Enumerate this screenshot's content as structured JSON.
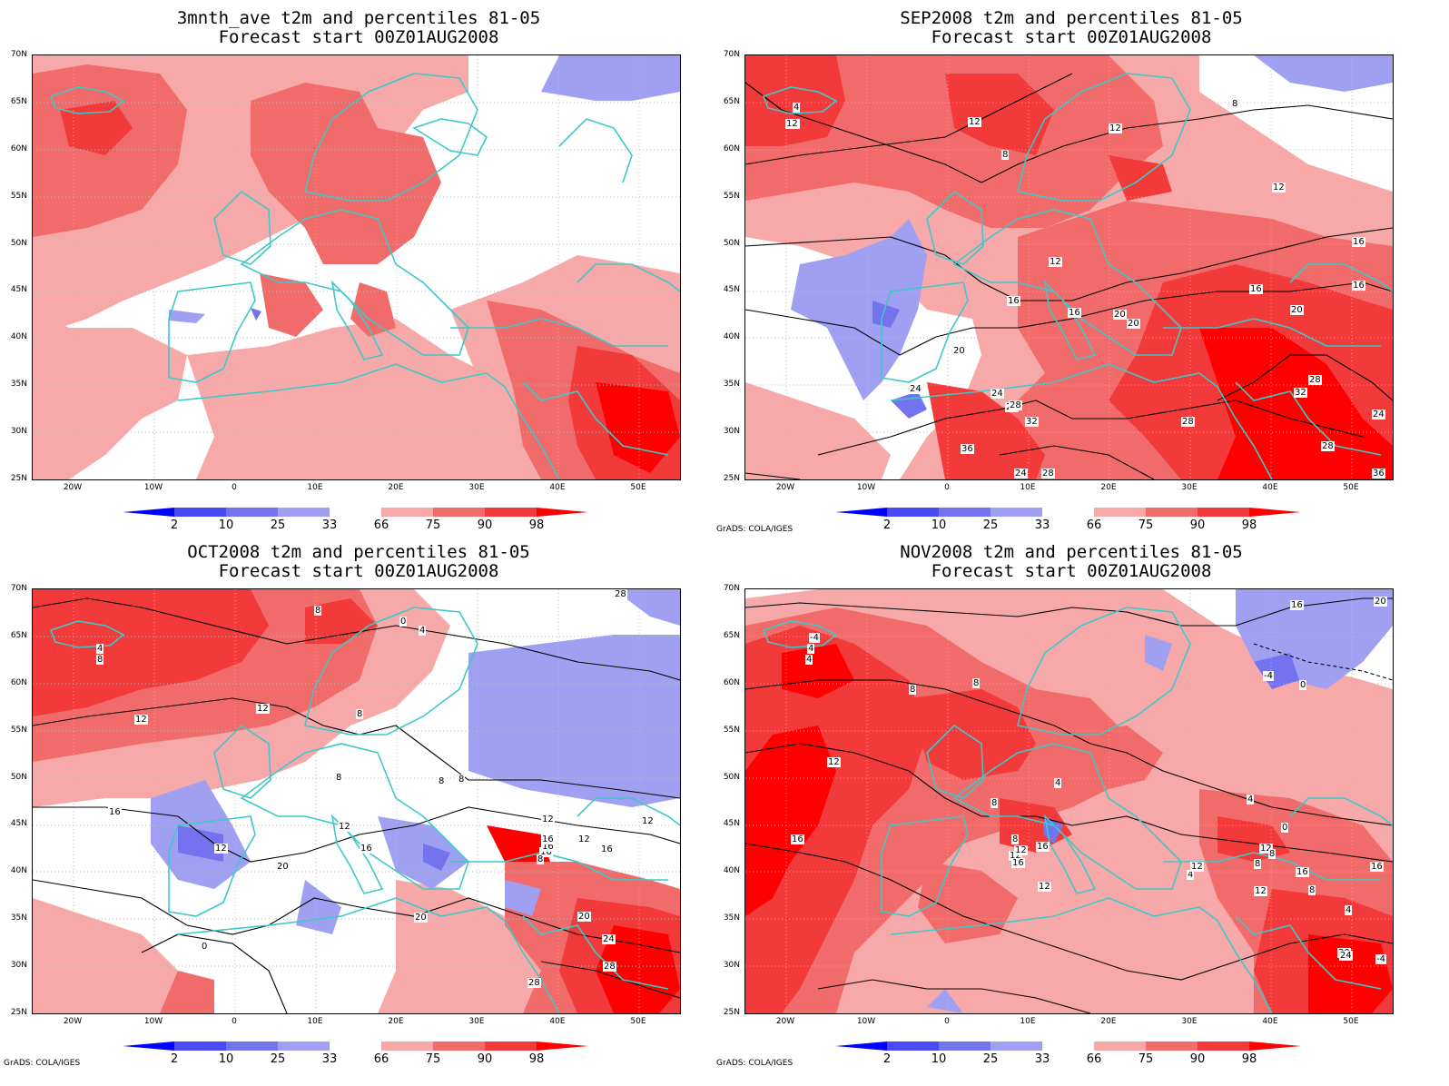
{
  "panels": [
    {
      "title1": "3mnth_ave t2m and percentiles 81-05",
      "title2": "Forecast start 00Z01AUG2008",
      "credit": ""
    },
    {
      "title1": "SEP2008 t2m and percentiles 81-05",
      "title2": "Forecast start 00Z01AUG2008",
      "credit": "GrADS: COLA/IGES"
    },
    {
      "title1": "OCT2008 t2m and percentiles 81-05",
      "title2": "Forecast start 00Z01AUG2008",
      "credit": "GrADS: COLA/IGES"
    },
    {
      "title1": "NOV2008 t2m and percentiles 81-05",
      "title2": "Forecast start 00Z01AUG2008",
      "credit": "GrADS: COLA/IGES"
    }
  ],
  "lat_labels": [
    "70N",
    "65N",
    "60N",
    "55N",
    "50N",
    "45N",
    "40N",
    "35N",
    "30N",
    "25N"
  ],
  "lon_labels": [
    "20W",
    "10W",
    "0",
    "10E",
    "20E",
    "30E",
    "40E",
    "50E"
  ],
  "colorbar_labels": [
    "2",
    "10",
    "25",
    "33",
    "66",
    "75",
    "90",
    "98"
  ],
  "colors": {
    "p2": "#0000ff",
    "p10": "#4a4af5",
    "p25": "#7373f0",
    "p33": "#a0a0f3",
    "p66": "#f7a8a8",
    "p75": "#f26b6b",
    "p90": "#f23a3a",
    "p98": "#ff0000",
    "coast": "#3ec8c8",
    "contour": "#000000",
    "grid": "#bbbbbb"
  },
  "contour_labels": {
    "p1": [],
    "p2": [
      "4",
      "8",
      "12",
      "12",
      "8",
      "12",
      "8",
      "12",
      "16",
      "16",
      "12",
      "16",
      "20",
      "20",
      "16",
      "20",
      "16",
      "20",
      "24",
      "24",
      "24",
      "28",
      "28",
      "32",
      "24",
      "28",
      "32",
      "36",
      "24",
      "28",
      "28",
      "36"
    ],
    "p3": [
      "0",
      "4",
      "8",
      "8",
      "12",
      "12",
      "8",
      "4",
      "8",
      "8",
      "8",
      "16",
      "12",
      "16",
      "16",
      "12",
      "20",
      "12",
      "16",
      "16",
      "12",
      "12",
      "16",
      "8",
      "20",
      "20",
      "24",
      "28",
      "28",
      "0",
      "28"
    ],
    "p4": [
      "-4",
      "4",
      "4",
      "8",
      "8",
      "12",
      "16",
      "4",
      "4",
      "8",
      "8",
      "12",
      "16",
      "16",
      "12",
      "12",
      "16",
      "12",
      "8",
      "12",
      "8",
      "4",
      "8",
      "0",
      "12",
      "16",
      "20",
      "24",
      "-4",
      "4",
      "0",
      "-4",
      "16",
      "20"
    ]
  }
}
